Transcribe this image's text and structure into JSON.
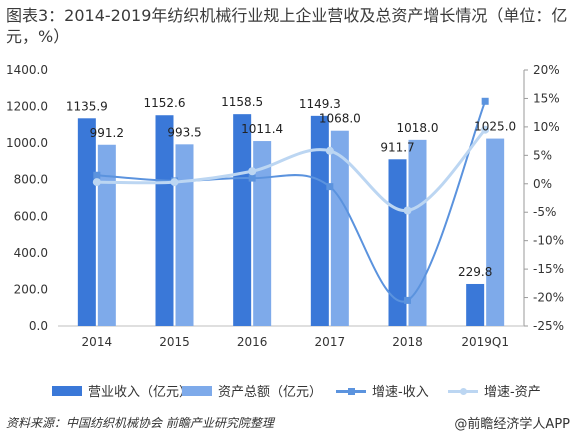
{
  "title": "图表3：2014-2019年纺织机械行业规上企业营收及总资产增长情况（单位：亿元，%）",
  "colors": {
    "revenue_bar": "#3a78d8",
    "assets_bar": "#7eaaea",
    "revenue_line": "#5b93de",
    "assets_line": "#bcd6f2",
    "axis_text": "#333333"
  },
  "chart_data": {
    "type": "bar",
    "categories": [
      "2014",
      "2015",
      "2016",
      "2017",
      "2018",
      "2019Q1"
    ],
    "series": [
      {
        "name": "营业收入（亿元）",
        "kind": "bar",
        "axis": "left",
        "values": [
          1135.9,
          1152.6,
          1158.5,
          1149.3,
          911.7,
          229.8
        ],
        "labels": [
          "1135.9",
          "1152.6",
          "1158.5",
          "1149.3",
          "911.7",
          "229.8"
        ]
      },
      {
        "name": "资产总额（亿元）",
        "kind": "bar",
        "axis": "left",
        "values": [
          991.2,
          993.5,
          1011.4,
          1068.0,
          1018.0,
          1025.0
        ],
        "labels": [
          "991.2",
          "993.5",
          "1011.4",
          "1068.0",
          "1018.0",
          "1025.0"
        ]
      },
      {
        "name": "增速-收入",
        "kind": "line",
        "axis": "right",
        "values": [
          1.5,
          0.5,
          1.0,
          -0.5,
          -20.5,
          14.5
        ]
      },
      {
        "name": "增速-资产",
        "kind": "line",
        "axis": "right",
        "values": [
          0.3,
          0.3,
          2.2,
          5.8,
          -4.7,
          9.5
        ]
      }
    ],
    "left_axis": {
      "min": 0,
      "max": 1400,
      "step": 200,
      "ticks": [
        "0.0",
        "200.0",
        "400.0",
        "600.0",
        "800.0",
        "1000.0",
        "1200.0",
        "1400.0"
      ]
    },
    "right_axis": {
      "min": -25,
      "max": 20,
      "step": 5,
      "ticks": [
        "-25%",
        "-20%",
        "-15%",
        "-10%",
        "-5%",
        "0%",
        "5%",
        "10%",
        "15%",
        "20%"
      ]
    },
    "grid": false,
    "legend_position": "bottom"
  },
  "footer": {
    "source": "资料来源：中国纺织机械协会 前瞻产业研究院整理",
    "brand": "@前瞻经济学人APP"
  }
}
